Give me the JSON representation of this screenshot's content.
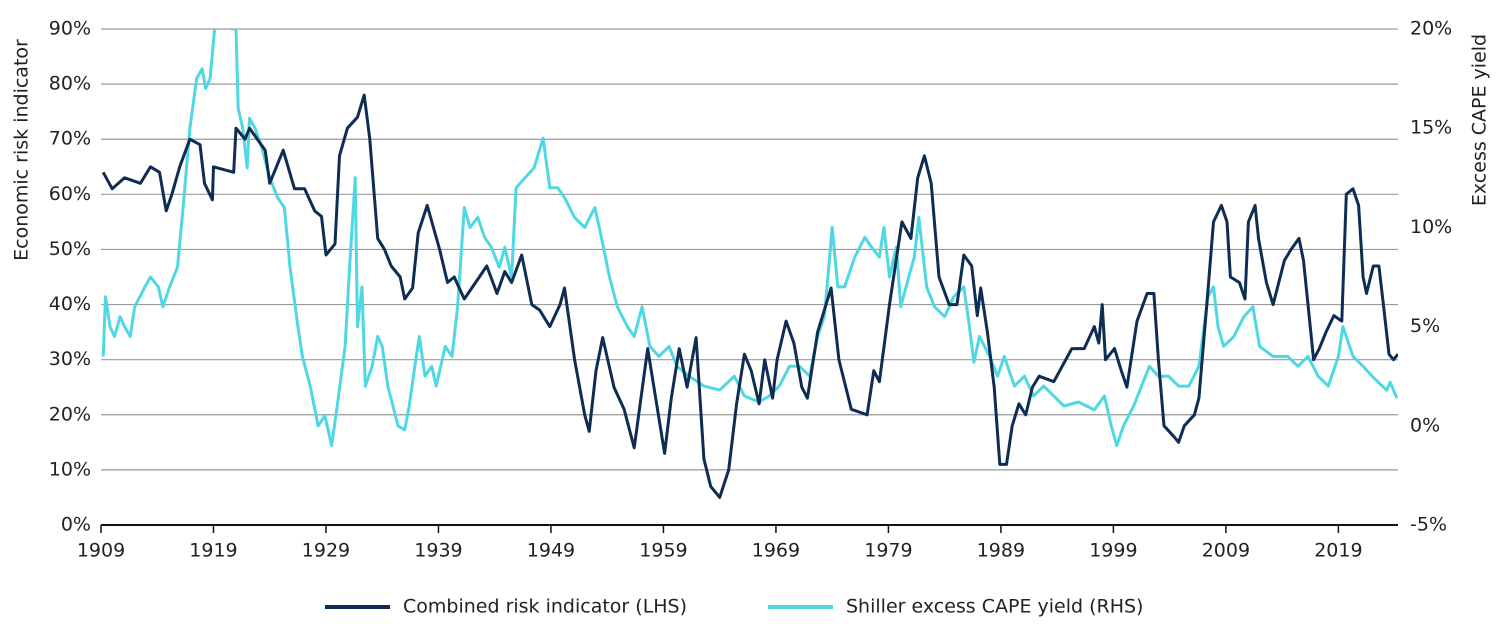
{
  "chart_data": {
    "type": "line",
    "xlabel": null,
    "ylabel": "Economic risk indicator",
    "y2label": "Excess CAPE yield",
    "xlim": [
      1909,
      2024.3
    ],
    "xticks": [
      1909,
      1919,
      1929,
      1939,
      1949,
      1959,
      1969,
      1979,
      1989,
      1999,
      2009,
      2019
    ],
    "ylim": [
      0,
      90
    ],
    "yticks": [
      {
        "value": 0,
        "label": "0%"
      },
      {
        "value": 10,
        "label": "10%"
      },
      {
        "value": 20,
        "label": "20%"
      },
      {
        "value": 30,
        "label": "30%"
      },
      {
        "value": 40,
        "label": "40%"
      },
      {
        "value": 50,
        "label": "50%"
      },
      {
        "value": 60,
        "label": "60%"
      },
      {
        "value": 70,
        "label": "70%"
      },
      {
        "value": 80,
        "label": "80%"
      },
      {
        "value": 90,
        "label": "90%"
      }
    ],
    "y2lim": [
      -5,
      20
    ],
    "y2ticks": [
      {
        "value": -5,
        "label": "-5%"
      },
      {
        "value": 0,
        "label": "0%"
      },
      {
        "value": 5,
        "label": "5%"
      },
      {
        "value": 10,
        "label": "10%"
      },
      {
        "value": 15,
        "label": "15%"
      },
      {
        "value": 20,
        "label": "20%"
      }
    ],
    "grid": true,
    "legend": "bottom",
    "series": [
      {
        "name": "Combined risk indicator (LHS)",
        "color": "#0f2d52",
        "axis": "y",
        "x": [
          1909.2,
          1910.0,
          1911.1,
          1912.5,
          1913.4,
          1914.2,
          1914.8,
          1915.3,
          1916.0,
          1916.9,
          1917.8,
          1918.2,
          1918.9,
          1919.0,
          1920.8,
          1921.0,
          1921.8,
          1922.2,
          1923.6,
          1924.0,
          1925.2,
          1926.2,
          1927.1,
          1928.0,
          1928.6,
          1929.0,
          1929.8,
          1930.2,
          1930.9,
          1931.8,
          1932.4,
          1932.9,
          1933.6,
          1934.2,
          1934.8,
          1935.6,
          1936.0,
          1936.7,
          1937.2,
          1938.0,
          1939.1,
          1939.8,
          1940.4,
          1941.3,
          1943.3,
          1944.2,
          1944.9,
          1945.5,
          1946.4,
          1947.3,
          1948.0,
          1948.9,
          1949.8,
          1950.2,
          1951.1,
          1952.0,
          1952.4,
          1953.0,
          1953.6,
          1954.6,
          1955.5,
          1956.4,
          1957.6,
          1959.1,
          1959.7,
          1960.4,
          1961.1,
          1961.9,
          1962.6,
          1963.2,
          1964.0,
          1964.8,
          1965.5,
          1966.2,
          1966.8,
          1967.5,
          1968.0,
          1968.7,
          1969.1,
          1969.9,
          1970.6,
          1971.3,
          1971.8,
          1972.7,
          1973.9,
          1974.6,
          1975.7,
          1977.1,
          1977.7,
          1978.2,
          1979.1,
          1980.2,
          1981.0,
          1981.6,
          1982.2,
          1982.8,
          1983.5,
          1984.4,
          1985.1,
          1985.7,
          1986.4,
          1986.9,
          1987.2,
          1987.8,
          1988.4,
          1988.9,
          1989.5,
          1990.0,
          1990.6,
          1991.2,
          1991.8,
          1992.4,
          1993.7,
          1995.3,
          1996.4,
          1997.3,
          1997.7,
          1998.0,
          1998.3,
          1999.1,
          1999.7,
          2000.2,
          2001.1,
          2002.0,
          2002.6,
          2003.0,
          2003.5,
          2004.4,
          2004.8,
          2005.3,
          2006.2,
          2006.6,
          2007.3,
          2007.9,
          2008.6,
          2009.1,
          2009.4,
          2010.2,
          2010.7,
          2011.0,
          2011.6,
          2011.9,
          2012.6,
          2013.2,
          2014.2,
          2014.8,
          2015.5,
          2015.9,
          2016.8,
          2017.3,
          2017.9,
          2018.6,
          2019.3,
          2019.7,
          2020.3,
          2020.8,
          2021.2,
          2021.5,
          2022.1,
          2022.6,
          2023.0,
          2023.5,
          2023.9,
          2024.3
        ],
        "values": [
          64,
          61,
          63,
          62,
          65,
          64,
          57,
          60,
          65,
          70,
          69,
          62,
          59,
          65,
          64,
          72,
          70,
          72,
          68,
          62,
          68,
          61,
          61,
          57,
          56,
          49,
          51,
          67,
          72,
          74,
          78,
          70,
          52,
          50,
          47,
          45,
          41,
          43,
          53,
          58,
          50,
          44,
          45,
          41,
          47,
          42,
          46,
          44,
          49,
          40,
          39,
          36,
          40,
          43,
          30,
          20,
          17,
          28,
          34,
          25,
          21,
          14,
          32,
          13,
          23,
          32,
          25,
          34,
          12,
          7,
          5,
          10,
          22,
          31,
          28,
          22,
          30,
          23,
          30,
          37,
          33,
          25,
          23,
          35,
          43,
          30,
          21,
          20,
          28,
          26,
          40,
          55,
          52,
          63,
          67,
          62,
          45,
          40,
          40,
          49,
          47,
          38,
          43,
          35,
          25,
          11,
          11,
          18,
          22,
          20,
          25,
          27,
          26,
          32,
          32,
          36,
          33,
          40,
          30,
          32,
          28,
          25,
          37,
          42,
          42,
          30,
          18,
          16,
          15,
          18,
          20,
          23,
          40,
          55,
          58,
          55,
          45,
          44,
          41,
          55,
          58,
          52,
          44,
          40,
          48,
          50,
          52,
          48,
          30,
          32,
          35,
          38,
          37,
          60,
          61,
          58,
          45,
          42,
          47,
          47,
          40,
          31,
          30,
          31
        ]
      },
      {
        "name": "Shiller excess CAPE yield (RHS)",
        "color": "#4fd8e4",
        "axis": "y2",
        "x": [
          1909.2,
          1909.4,
          1909.8,
          1910.2,
          1910.7,
          1911.1,
          1911.6,
          1912.0,
          1912.9,
          1913.4,
          1914.1,
          1914.5,
          1915.1,
          1915.8,
          1916.3,
          1916.9,
          1917.5,
          1918.0,
          1918.3,
          1918.7,
          1919.1,
          1919.7,
          1920.6,
          1921.0,
          1921.2,
          1921.6,
          1922.0,
          1922.2,
          1922.7,
          1923.3,
          1924.0,
          1924.7,
          1925.3,
          1925.8,
          1926.5,
          1926.9,
          1927.6,
          1928.3,
          1928.9,
          1929.5,
          1930.0,
          1930.7,
          1931.1,
          1931.6,
          1931.8,
          1932.2,
          1932.5,
          1933.1,
          1933.6,
          1934.0,
          1934.5,
          1935.4,
          1936.0,
          1936.4,
          1936.9,
          1937.3,
          1937.8,
          1938.4,
          1938.8,
          1939.6,
          1940.2,
          1940.7,
          1941.3,
          1941.8,
          1942.5,
          1943.1,
          1943.7,
          1944.4,
          1944.9,
          1945.5,
          1945.9,
          1946.7,
          1947.5,
          1948.3,
          1948.9,
          1949.6,
          1950.2,
          1951.1,
          1952.0,
          1952.9,
          1953.3,
          1954.2,
          1954.9,
          1955.8,
          1956.4,
          1957.1,
          1957.8,
          1958.6,
          1959.5,
          1960.2,
          1961.3,
          1962.6,
          1964.0,
          1965.3,
          1966.2,
          1967.5,
          1968.4,
          1969.3,
          1970.2,
          1971.1,
          1972.0,
          1972.7,
          1973.3,
          1973.7,
          1974.0,
          1974.5,
          1975.1,
          1976.0,
          1976.9,
          1977.5,
          1978.2,
          1978.6,
          1979.1,
          1979.7,
          1980.1,
          1980.8,
          1981.3,
          1981.7,
          1982.4,
          1983.1,
          1984.0,
          1984.8,
          1985.7,
          1986.2,
          1986.6,
          1987.1,
          1988.0,
          1988.7,
          1989.3,
          1990.2,
          1991.1,
          1991.9,
          1992.8,
          1993.7,
          1994.6,
          1995.9,
          1997.3,
          1998.2,
          1998.8,
          1999.3,
          1999.9,
          2000.8,
          2001.5,
          2002.2,
          2003.0,
          2003.9,
          2004.8,
          2005.7,
          2006.6,
          2007.4,
          2007.9,
          2008.3,
          2008.8,
          2009.7,
          2010.6,
          2011.4,
          2012.0,
          2013.2,
          2014.5,
          2015.4,
          2016.3,
          2017.2,
          2018.1,
          2019.0,
          2019.4,
          2020.3,
          2021.2,
          2022.0,
          2022.9,
          2023.3,
          2023.6,
          2024.2
        ],
        "values": [
          3.5,
          6.5,
          5,
          4.5,
          5.5,
          5,
          4.5,
          6,
          7,
          7.5,
          7,
          6,
          7,
          8,
          11,
          15,
          17.5,
          18,
          17,
          17.5,
          20,
          21,
          20,
          20,
          16,
          15,
          13,
          15.5,
          15,
          14,
          12.5,
          11.5,
          11,
          8,
          5,
          3.5,
          2,
          0,
          0.5,
          -1,
          1,
          4,
          8,
          12.5,
          5,
          7,
          2,
          3,
          4.5,
          4,
          2,
          0,
          -0.2,
          1,
          3,
          4.5,
          2.5,
          3,
          2,
          4,
          3.5,
          6,
          11,
          10,
          10.5,
          9.5,
          9,
          8,
          9,
          7.5,
          12,
          12.5,
          13,
          14.5,
          12,
          12,
          11.5,
          10.5,
          10,
          11,
          10,
          7.5,
          6,
          5,
          4.5,
          6,
          4,
          3.5,
          4,
          3,
          2.5,
          2,
          1.8,
          2.5,
          1.5,
          1.2,
          1.5,
          2,
          3,
          3,
          2.5,
          4.5,
          5.5,
          8,
          10,
          7,
          7,
          8.5,
          9.5,
          9,
          8.5,
          10,
          7.5,
          9,
          6,
          7.5,
          8.5,
          10.5,
          7,
          6,
          5.5,
          6.5,
          7,
          5,
          3.2,
          4.5,
          3.5,
          2.5,
          3.5,
          2,
          2.5,
          1.5,
          2,
          1.5,
          1,
          1.2,
          0.8,
          1.5,
          0,
          -1,
          0,
          1,
          2,
          3,
          2.5,
          2.5,
          2,
          2,
          3,
          6.5,
          7,
          5,
          4,
          4.5,
          5.5,
          6,
          4,
          3.5,
          3.5,
          3,
          3.5,
          2.5,
          2,
          3.5,
          5,
          3.5,
          3,
          2.5,
          2,
          1.8,
          2.2,
          1.4
        ]
      }
    ]
  }
}
